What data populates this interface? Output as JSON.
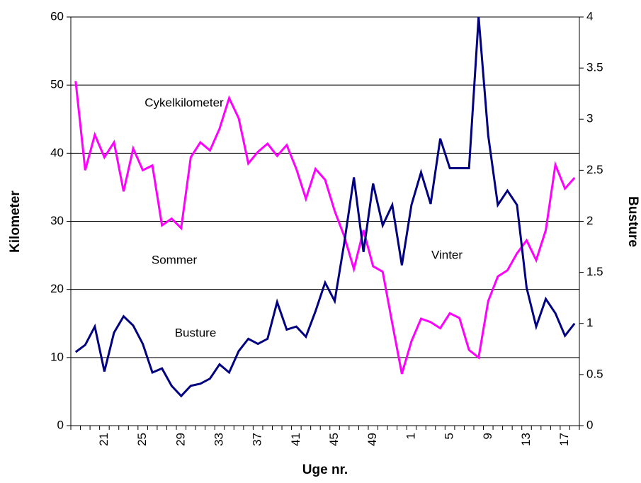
{
  "chart_data": {
    "type": "line",
    "x_label": "Uge nr.",
    "y_label": "Kilometer",
    "y2_label": "Busture",
    "annotations": [
      "Cykelkilometer",
      "Sommer",
      "Busture",
      "Vinter"
    ],
    "categories": [
      null,
      null,
      null,
      "21",
      null,
      null,
      null,
      "25",
      null,
      null,
      null,
      "29",
      null,
      null,
      null,
      "33",
      null,
      null,
      null,
      "37",
      null,
      null,
      null,
      "41",
      null,
      null,
      null,
      "45",
      null,
      null,
      null,
      "49",
      null,
      null,
      null,
      "1",
      null,
      null,
      null,
      "5",
      null,
      null,
      null,
      "9",
      null,
      null,
      null,
      "13",
      null,
      null,
      null,
      "17",
      null
    ],
    "series": [
      {
        "name": "Cykelkilometer",
        "color": "#ff00ff",
        "axis": "y",
        "values": [
          50.6,
          37.5,
          42.7,
          39.4,
          41.6,
          34.4,
          40.7,
          37.5,
          38.2,
          29.4,
          30.4,
          29.0,
          39.4,
          41.6,
          40.4,
          43.6,
          48.1,
          45.1,
          38.5,
          40.2,
          41.4,
          39.6,
          41.2,
          37.7,
          33.3,
          37.7,
          36.1,
          31.5,
          27.8,
          23.0,
          28.7,
          23.4,
          22.6,
          15.0,
          7.6,
          12.4,
          15.7,
          15.2,
          14.3,
          16.5,
          15.8,
          11.1,
          10.0,
          18.3,
          21.9,
          22.8,
          25.3,
          27.2,
          24.3,
          28.7,
          38.3,
          34.8,
          36.4
        ]
      },
      {
        "name": "Busture",
        "color": "#000080",
        "axis": "y2",
        "values": [
          0.72,
          0.79,
          0.97,
          0.53,
          0.91,
          1.07,
          0.98,
          0.8,
          0.52,
          0.56,
          0.39,
          0.29,
          0.39,
          0.41,
          0.46,
          0.6,
          0.52,
          0.73,
          0.85,
          0.8,
          0.85,
          1.21,
          0.94,
          0.97,
          0.87,
          1.12,
          1.4,
          1.22,
          1.79,
          2.43,
          1.7,
          2.37,
          1.96,
          2.16,
          1.57,
          2.16,
          2.48,
          2.17,
          2.81,
          2.52,
          2.52,
          2.52,
          4.0,
          2.84,
          2.16,
          2.3,
          2.16,
          1.35,
          0.97,
          1.24,
          1.1,
          0.88,
          1.0
        ]
      }
    ],
    "ylim": [
      0,
      60
    ],
    "yticks": [
      0,
      10,
      20,
      30,
      40,
      50,
      60
    ],
    "y2lim": [
      0,
      4
    ],
    "y2ticks": [
      0,
      0.5,
      1,
      1.5,
      2,
      2.5,
      3,
      3.5,
      4
    ],
    "grid": true
  }
}
